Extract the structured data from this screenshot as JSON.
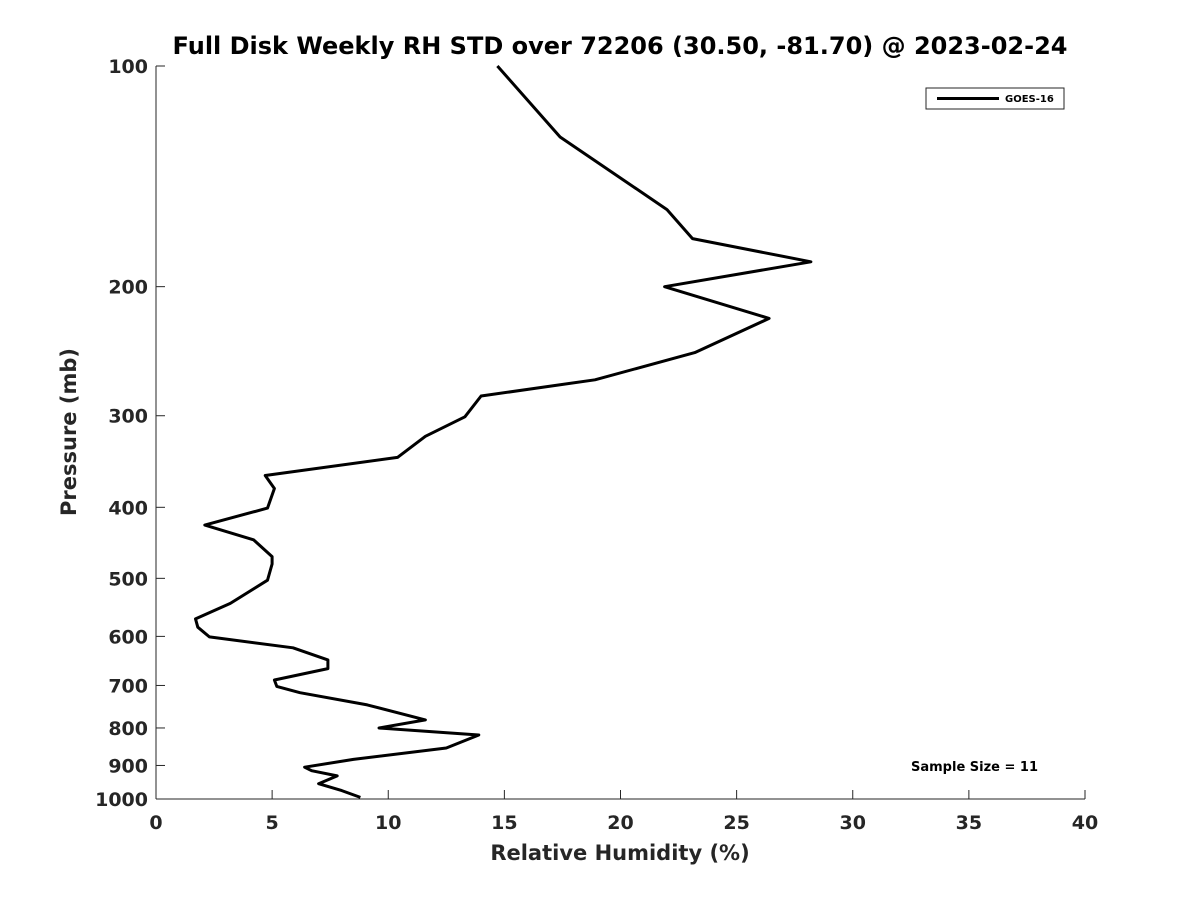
{
  "chart_data": {
    "type": "line",
    "title": "Full Disk Weekly RH STD over 72206 (30.50, -81.70) @ 2023-02-24",
    "xlabel": "Relative Humidity (%)",
    "ylabel": "Pressure (mb)",
    "xlim": [
      0,
      40
    ],
    "ylim": [
      100,
      1000
    ],
    "yscale": "log",
    "y_reversed": true,
    "grid": false,
    "legend_position": "top-right",
    "xticks": [
      0,
      5,
      10,
      15,
      20,
      25,
      30,
      35,
      40
    ],
    "yticks": [
      100,
      200,
      300,
      400,
      500,
      600,
      700,
      800,
      900,
      1000
    ],
    "series": [
      {
        "name": "GOES-16",
        "color": "#000000",
        "x": [
          14.7,
          17.4,
          22.0,
          23.1,
          28.2,
          21.9,
          26.4,
          23.2,
          18.9,
          14.0,
          13.3,
          11.6,
          10.4,
          4.7,
          5.1,
          4.8,
          2.1,
          4.2,
          5.0,
          5.0,
          4.8,
          3.2,
          1.7,
          1.8,
          2.3,
          5.9,
          7.4,
          7.4,
          5.1,
          5.2,
          6.2,
          9.1,
          11.6,
          9.6,
          13.9,
          12.5,
          8.5,
          6.4,
          6.7,
          7.8,
          7.0,
          8.0,
          8.8
        ],
        "y": [
          100,
          125,
          157,
          172,
          185,
          200,
          221,
          246,
          268,
          282,
          301,
          320,
          342,
          362,
          377,
          401,
          423,
          443,
          467,
          478,
          503,
          541,
          568,
          583,
          601,
          622,
          646,
          664,
          688,
          702,
          716,
          744,
          780,
          800,
          818,
          852,
          883,
          905,
          915,
          930,
          953,
          974,
          995
        ]
      }
    ],
    "annotation": "Sample Size = 11"
  }
}
